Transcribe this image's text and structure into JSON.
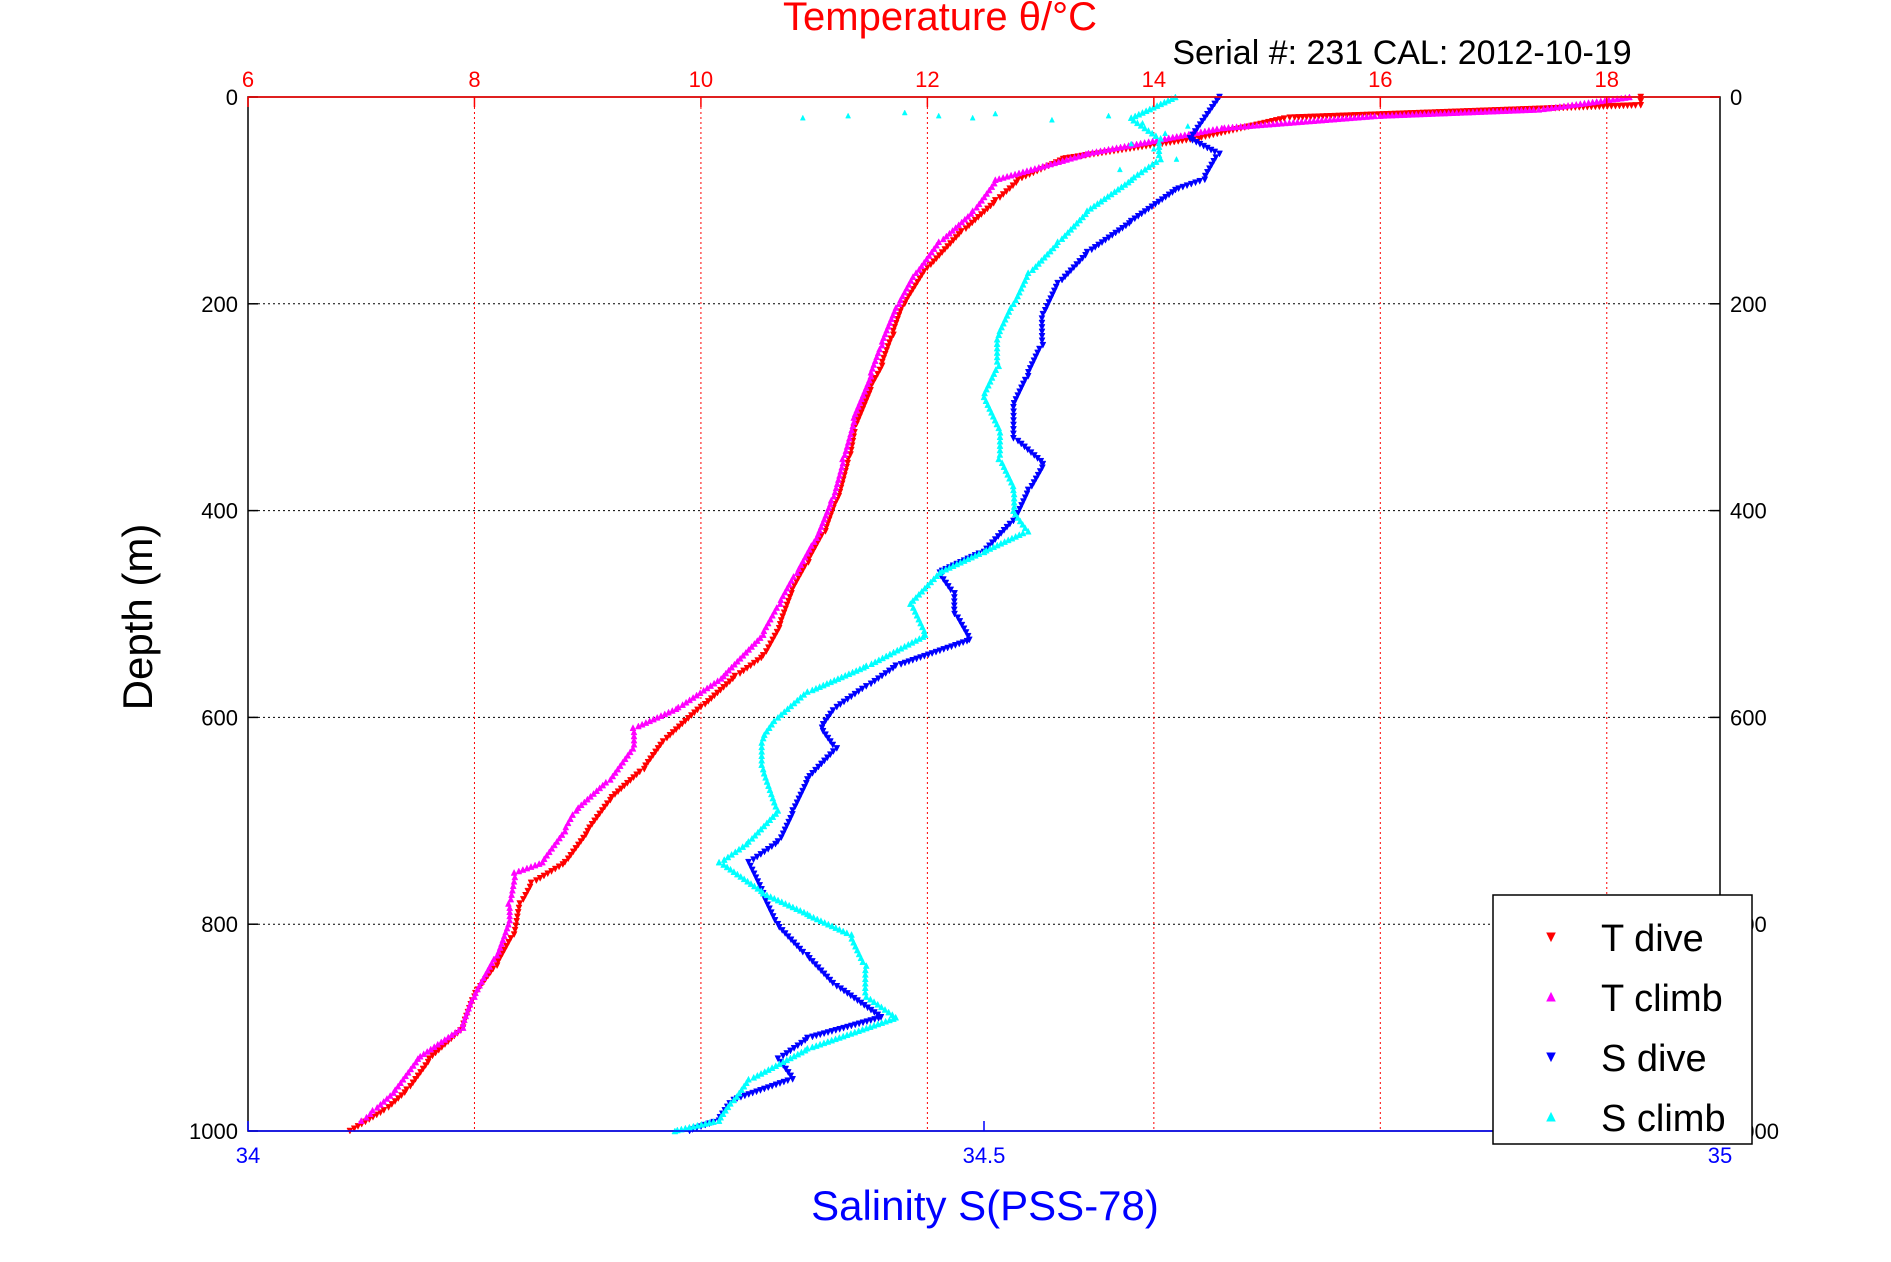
{
  "chart_data": {
    "type": "scatter",
    "title": "Temperature θ/°C",
    "subtitle": "Serial #: 231  CAL: 2012-10-19",
    "ylabel": "Depth (m)",
    "xlabel": "Salinity S(PSS-78)",
    "top_axis": {
      "label": "Temperature θ/°C",
      "range": [
        6,
        19
      ],
      "ticks": [
        "6",
        "8",
        "10",
        "12",
        "14",
        "16",
        "18"
      ],
      "tick_values": [
        6,
        8,
        10,
        12,
        14,
        16,
        18
      ],
      "color": "#ff0000"
    },
    "bottom_axis": {
      "label": "Salinity S(PSS-78)",
      "range": [
        34,
        35
      ],
      "ticks": [
        "34",
        "34.5",
        "35"
      ],
      "tick_values": [
        34,
        34.5,
        35
      ],
      "color": "#0000ff"
    },
    "y_axis": {
      "range": [
        0,
        1000
      ],
      "reversed": true,
      "ticks": [
        "0",
        "200",
        "400",
        "600",
        "800",
        "1000"
      ],
      "tick_values": [
        0,
        200,
        400,
        600,
        800,
        1000
      ]
    },
    "grid": true,
    "legend_position": "bottom-right",
    "series": [
      {
        "name": "T dive",
        "axis": "top",
        "marker": "triangle-down",
        "color": "#ff0000",
        "points": [
          [
            18.3,
            0
          ],
          [
            18.3,
            8
          ],
          [
            15.2,
            20
          ],
          [
            14.4,
            40
          ],
          [
            13.2,
            60
          ],
          [
            12.8,
            80
          ],
          [
            12.6,
            100
          ],
          [
            12.3,
            130
          ],
          [
            12.0,
            165
          ],
          [
            11.8,
            200
          ],
          [
            11.7,
            230
          ],
          [
            11.6,
            260
          ],
          [
            11.5,
            280
          ],
          [
            11.35,
            320
          ],
          [
            11.3,
            350
          ],
          [
            11.2,
            390
          ],
          [
            11.1,
            420
          ],
          [
            10.95,
            450
          ],
          [
            10.8,
            480
          ],
          [
            10.7,
            510
          ],
          [
            10.55,
            540
          ],
          [
            10.3,
            560
          ],
          [
            10.0,
            590
          ],
          [
            9.7,
            620
          ],
          [
            9.5,
            650
          ],
          [
            9.2,
            680
          ],
          [
            9.0,
            710
          ],
          [
            8.8,
            740
          ],
          [
            8.5,
            760
          ],
          [
            8.4,
            780
          ],
          [
            8.35,
            810
          ],
          [
            8.2,
            840
          ],
          [
            8.0,
            870
          ],
          [
            7.9,
            900
          ],
          [
            7.6,
            930
          ],
          [
            7.4,
            960
          ],
          [
            7.2,
            980
          ],
          [
            6.9,
            1000
          ]
        ]
      },
      {
        "name": "T climb",
        "axis": "top",
        "marker": "triangle-up",
        "color": "#ff00ff",
        "points": [
          [
            18.2,
            0
          ],
          [
            17.4,
            12
          ],
          [
            16.0,
            18
          ],
          [
            14.6,
            30
          ],
          [
            13.4,
            55
          ],
          [
            12.6,
            80
          ],
          [
            12.4,
            110
          ],
          [
            12.1,
            140
          ],
          [
            11.9,
            170
          ],
          [
            11.75,
            200
          ],
          [
            11.6,
            240
          ],
          [
            11.5,
            270
          ],
          [
            11.35,
            310
          ],
          [
            11.25,
            350
          ],
          [
            11.15,
            390
          ],
          [
            11.0,
            430
          ],
          [
            10.85,
            460
          ],
          [
            10.7,
            490
          ],
          [
            10.55,
            520
          ],
          [
            10.2,
            560
          ],
          [
            9.8,
            590
          ],
          [
            9.4,
            610
          ],
          [
            9.4,
            630
          ],
          [
            9.2,
            660
          ],
          [
            8.9,
            690
          ],
          [
            8.8,
            710
          ],
          [
            8.6,
            740
          ],
          [
            8.35,
            750
          ],
          [
            8.3,
            780
          ],
          [
            8.3,
            800
          ],
          [
            8.2,
            830
          ],
          [
            8.0,
            870
          ],
          [
            7.9,
            900
          ],
          [
            7.5,
            930
          ],
          [
            7.3,
            960
          ],
          [
            7.1,
            980
          ],
          [
            7.0,
            990
          ]
        ]
      },
      {
        "name": "S dive",
        "axis": "bottom",
        "marker": "triangle-down",
        "color": "#0000ff",
        "points": [
          [
            34.66,
            0
          ],
          [
            34.64,
            40
          ],
          [
            34.66,
            55
          ],
          [
            34.65,
            80
          ],
          [
            34.63,
            90
          ],
          [
            34.6,
            120
          ],
          [
            34.57,
            150
          ],
          [
            34.55,
            180
          ],
          [
            34.54,
            210
          ],
          [
            34.54,
            240
          ],
          [
            34.53,
            270
          ],
          [
            34.52,
            300
          ],
          [
            34.52,
            330
          ],
          [
            34.54,
            355
          ],
          [
            34.53,
            380
          ],
          [
            34.52,
            410
          ],
          [
            34.5,
            440
          ],
          [
            34.47,
            460
          ],
          [
            34.48,
            480
          ],
          [
            34.48,
            500
          ],
          [
            34.49,
            525
          ],
          [
            34.44,
            550
          ],
          [
            34.42,
            570
          ],
          [
            34.4,
            590
          ],
          [
            34.39,
            610
          ],
          [
            34.4,
            630
          ],
          [
            34.38,
            660
          ],
          [
            34.37,
            690
          ],
          [
            34.36,
            720
          ],
          [
            34.34,
            740
          ],
          [
            34.35,
            770
          ],
          [
            34.36,
            800
          ],
          [
            34.38,
            830
          ],
          [
            34.4,
            860
          ],
          [
            34.43,
            890
          ],
          [
            34.38,
            910
          ],
          [
            34.36,
            930
          ],
          [
            34.37,
            950
          ],
          [
            34.33,
            970
          ],
          [
            34.32,
            990
          ],
          [
            34.3,
            1000
          ]
        ]
      },
      {
        "name": "S climb",
        "axis": "bottom",
        "marker": "triangle-up",
        "color": "#00ffff",
        "points": [
          [
            34.63,
            0
          ],
          [
            34.6,
            20
          ],
          [
            34.62,
            40
          ],
          [
            34.62,
            60
          ],
          [
            34.6,
            80
          ],
          [
            34.57,
            110
          ],
          [
            34.55,
            140
          ],
          [
            34.53,
            170
          ],
          [
            34.52,
            200
          ],
          [
            34.51,
            230
          ],
          [
            34.51,
            260
          ],
          [
            34.5,
            290
          ],
          [
            34.51,
            320
          ],
          [
            34.51,
            350
          ],
          [
            34.52,
            380
          ],
          [
            34.52,
            400
          ],
          [
            34.53,
            420
          ],
          [
            34.5,
            440
          ],
          [
            34.47,
            460
          ],
          [
            34.45,
            490
          ],
          [
            34.46,
            520
          ],
          [
            34.42,
            550
          ],
          [
            34.38,
            575
          ],
          [
            34.36,
            600
          ],
          [
            34.35,
            620
          ],
          [
            34.35,
            650
          ],
          [
            34.36,
            690
          ],
          [
            34.34,
            720
          ],
          [
            34.32,
            740
          ],
          [
            34.35,
            770
          ],
          [
            34.38,
            790
          ],
          [
            34.41,
            810
          ],
          [
            34.42,
            840
          ],
          [
            34.42,
            870
          ],
          [
            34.44,
            890
          ],
          [
            34.38,
            920
          ],
          [
            34.34,
            950
          ],
          [
            34.33,
            970
          ],
          [
            34.32,
            990
          ],
          [
            34.29,
            1000
          ]
        ]
      }
    ],
    "surface_scatter": [
      [
        10.9,
        20
      ],
      [
        11.3,
        18
      ],
      [
        11.8,
        15
      ],
      [
        12.1,
        18
      ],
      [
        12.4,
        20
      ],
      [
        12.6,
        16
      ],
      [
        13.1,
        22
      ],
      [
        13.6,
        18
      ],
      [
        13.9,
        25
      ],
      [
        14.3,
        28
      ],
      [
        14.1,
        35
      ],
      [
        13.8,
        45
      ],
      [
        14.0,
        50
      ],
      [
        14.2,
        60
      ],
      [
        13.7,
        70
      ]
    ]
  }
}
